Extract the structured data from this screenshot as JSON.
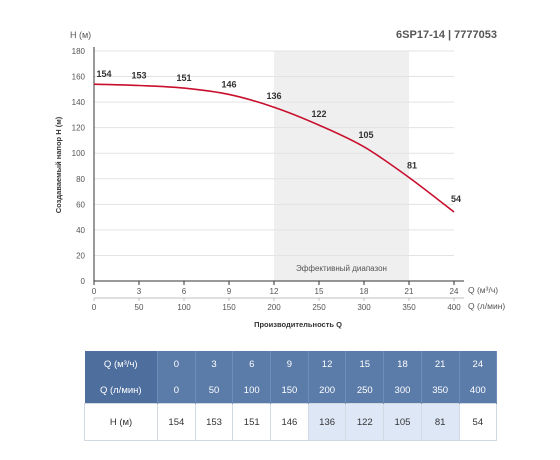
{
  "header": {
    "model": "6SP17-14 | 7777053",
    "y_axis_unit_label": "H (м)"
  },
  "chart_data": {
    "type": "line",
    "title": "6SP17-14 | 7777053",
    "ylabel": "Создаваемый напор H (м)",
    "xlabel": "Производительность Q",
    "ylim": [
      0,
      180
    ],
    "yticks": [
      "0",
      "20",
      "40",
      "60",
      "80",
      "100",
      "120",
      "140",
      "160",
      "180"
    ],
    "x_primary": {
      "label": "Q (м³/ч)",
      "ticks": [
        "0",
        "3",
        "6",
        "9",
        "12",
        "15",
        "18",
        "21",
        "24"
      ]
    },
    "x_secondary": {
      "label": "Q (л/мин)",
      "ticks": [
        "0",
        "50",
        "100",
        "150",
        "200",
        "250",
        "300",
        "350",
        "400"
      ]
    },
    "x": [
      0,
      3,
      6,
      9,
      12,
      15,
      18,
      21,
      24
    ],
    "series": [
      {
        "values": [
          154,
          153,
          151,
          146,
          136,
          122,
          105,
          81,
          54
        ],
        "color": "#c8102e"
      }
    ],
    "data_labels": [
      "154",
      "153",
      "151",
      "146",
      "136",
      "122",
      "105",
      "81",
      "54"
    ],
    "efficiency_zone": {
      "label": "Эффективный диапазон",
      "from": 12,
      "to": 21,
      "color": "#efefef"
    },
    "grid": "horizontal"
  },
  "table": {
    "rows": [
      {
        "label": "Q (м³/ч)",
        "cells": [
          "0",
          "3",
          "6",
          "9",
          "12",
          "15",
          "18",
          "21",
          "24"
        ]
      },
      {
        "label": "Q (л/мин)",
        "cells": [
          "0",
          "50",
          "100",
          "150",
          "200",
          "250",
          "300",
          "350",
          "400"
        ]
      },
      {
        "label": "H (м)",
        "cells": [
          "154",
          "153",
          "151",
          "146",
          "136",
          "122",
          "105",
          "81",
          "54"
        ]
      }
    ],
    "highlight_columns": [
      4,
      5,
      6,
      7
    ]
  }
}
